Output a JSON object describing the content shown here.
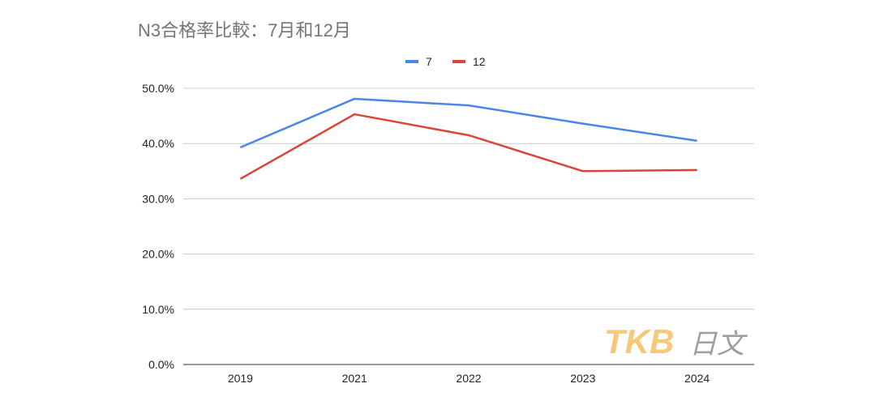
{
  "chart_data": {
    "type": "line",
    "title": "N3合格率比較：7月和12月",
    "categories": [
      "2019",
      "2021",
      "2022",
      "2023",
      "2024"
    ],
    "series": [
      {
        "name": "7",
        "color": "#4a86e8",
        "values": [
          39.3,
          48.1,
          46.9,
          43.6,
          40.5
        ]
      },
      {
        "name": "12",
        "color": "#db4437",
        "values": [
          33.6,
          45.3,
          41.5,
          35.0,
          35.2
        ]
      }
    ],
    "yticks": [
      "0.0%",
      "10.0%",
      "20.0%",
      "30.0%",
      "40.0%",
      "50.0%"
    ],
    "ylim": [
      0,
      50
    ],
    "grid": true,
    "legend_position": "top-center",
    "xlabel": "",
    "ylabel": ""
  },
  "watermark": {
    "text": "TKB日文",
    "colors": {
      "tkb": "#f6c97a",
      "ribun": "#9e9e9e"
    }
  }
}
